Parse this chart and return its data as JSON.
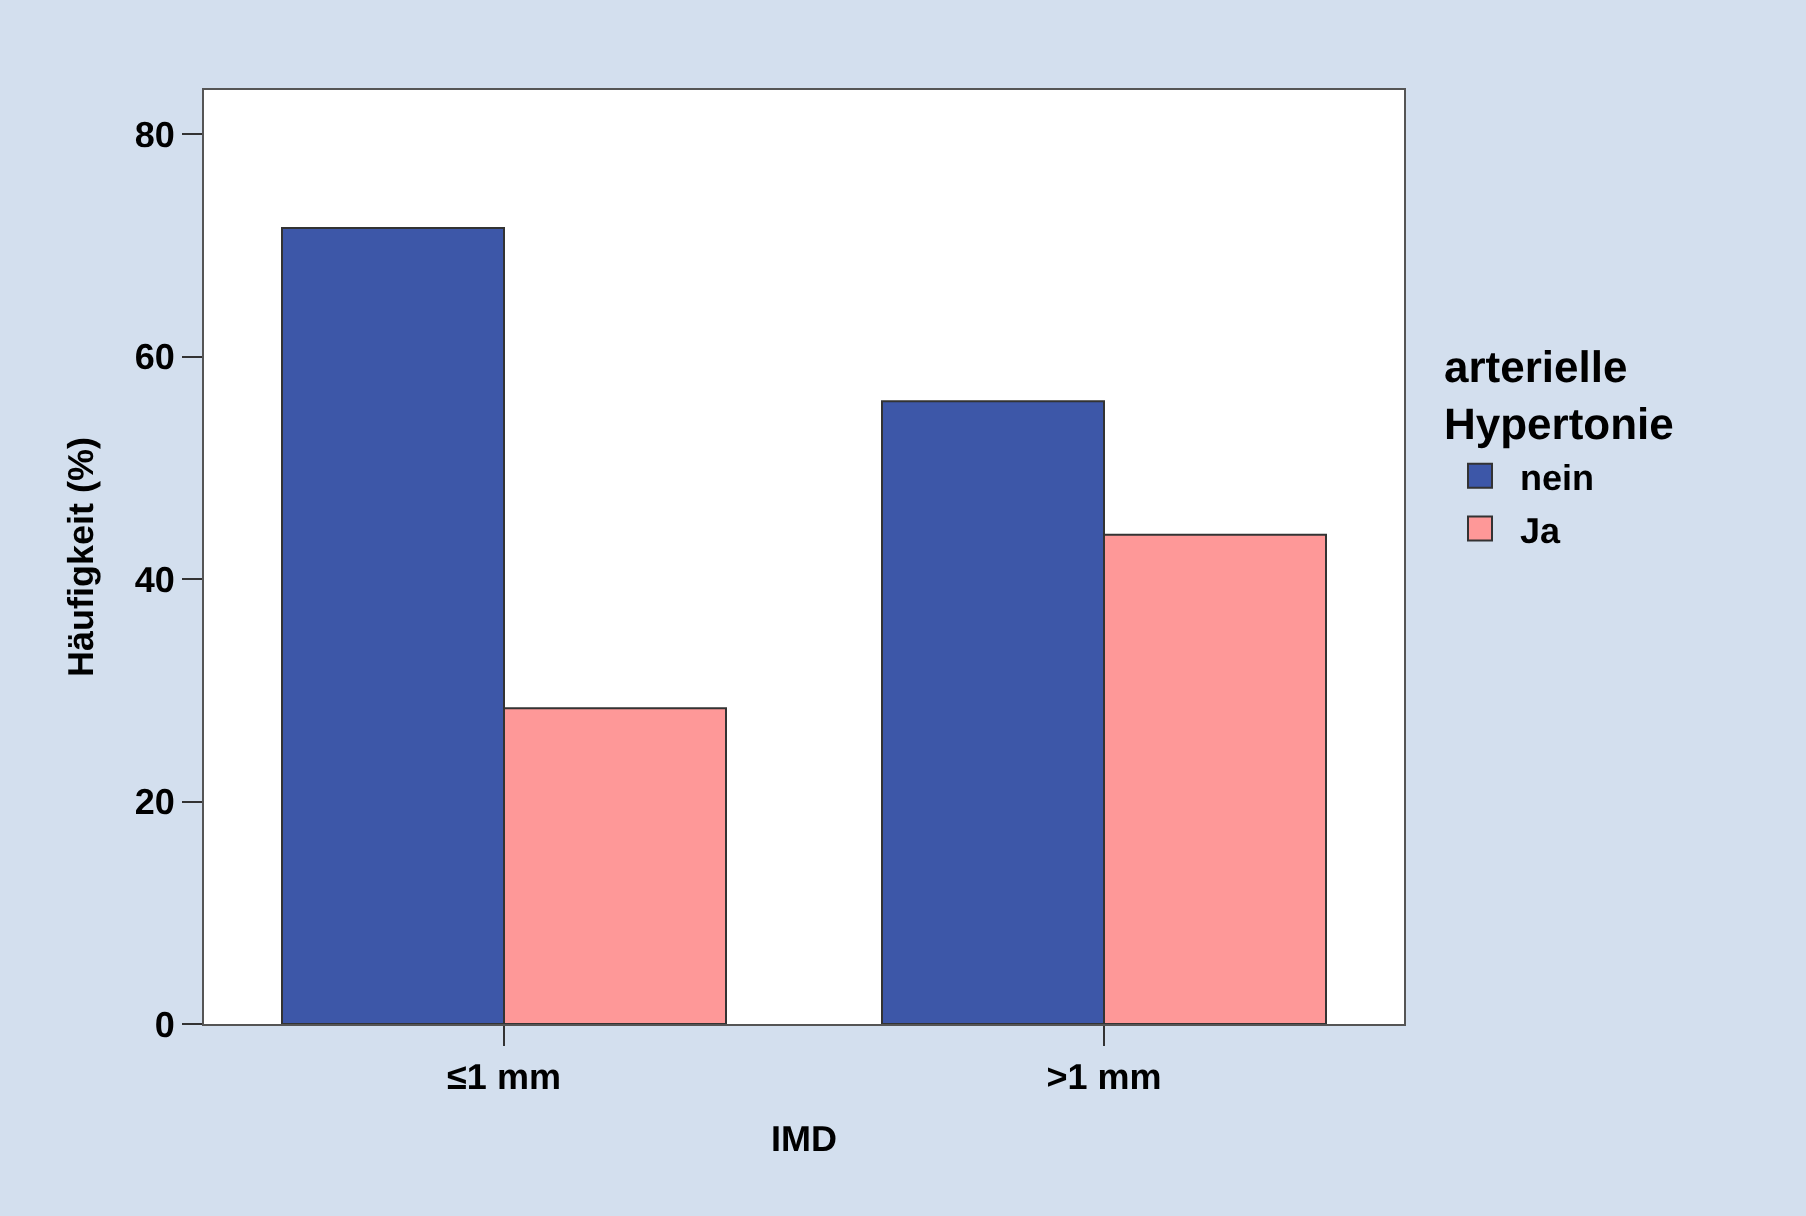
{
  "chart_data": {
    "type": "bar",
    "xlabel": "IMD",
    "ylabel": "Häufigkeit (%)",
    "legend_title": "arterielle Hypertonie",
    "categories": [
      "≤1 mm",
      ">1 mm"
    ],
    "series": [
      {
        "name": "nein",
        "color": "#3d57a8",
        "values": [
          71.6,
          56.0
        ]
      },
      {
        "name": "Ja",
        "color": "#fe9898",
        "values": [
          28.4,
          44.0
        ]
      }
    ],
    "ylim": [
      0,
      84
    ],
    "yticks": [
      0,
      20,
      40,
      60,
      80
    ],
    "legend": "right"
  }
}
